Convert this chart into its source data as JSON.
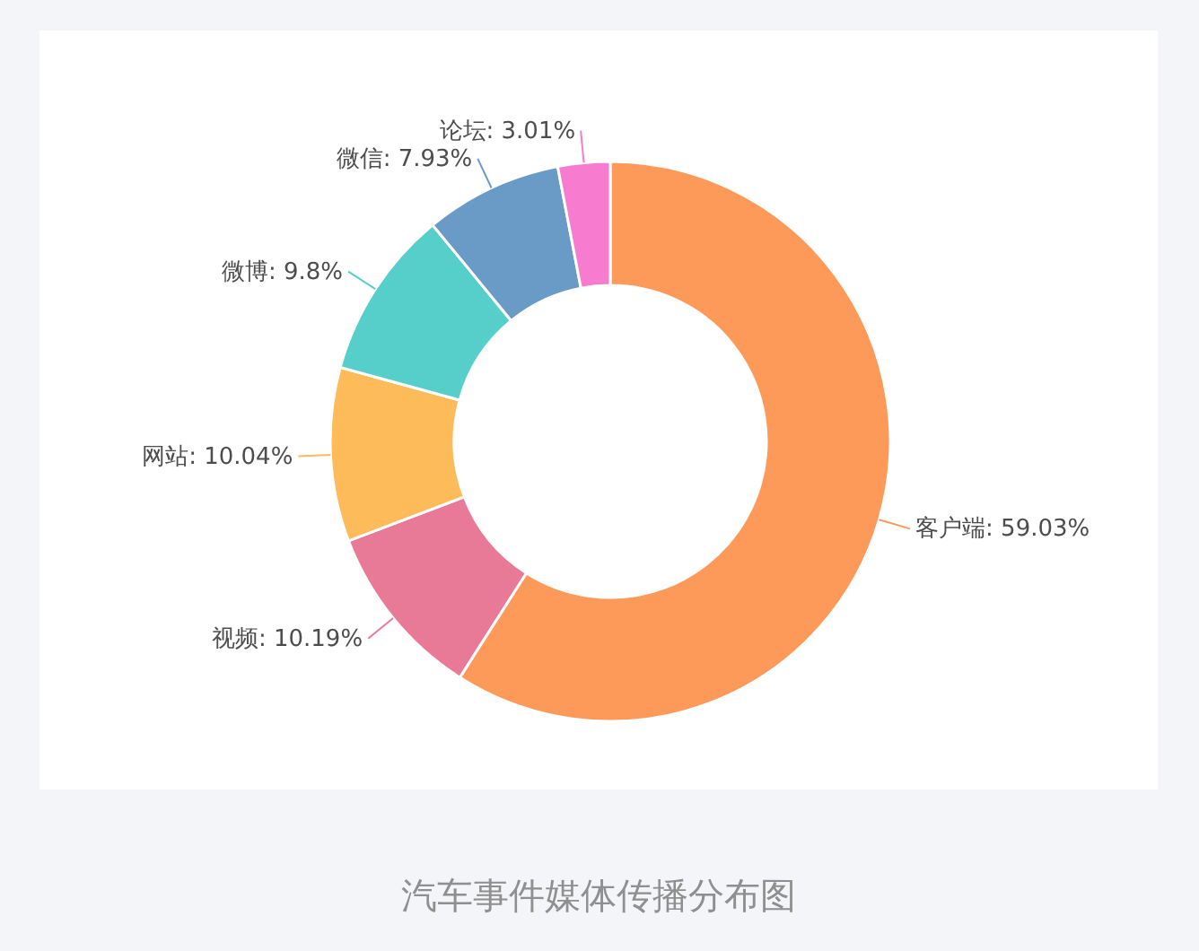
{
  "chart_data": {
    "type": "donut",
    "categories": [
      "客户端",
      "视频",
      "网站",
      "微博",
      "微信",
      "论坛"
    ],
    "values": [
      59.03,
      10.19,
      10.04,
      9.8,
      7.93,
      3.01
    ],
    "colors": [
      "#fd9a59",
      "#e87a98",
      "#fdbb59",
      "#56cfca",
      "#6a9bc6",
      "#f77bcf"
    ],
    "value_labels": [
      "59.03%",
      "10.19%",
      "10.04%",
      "9.8%",
      "7.93%",
      "3.01%"
    ],
    "annotations": [
      "汽车事件媒体传播分布图"
    ]
  }
}
